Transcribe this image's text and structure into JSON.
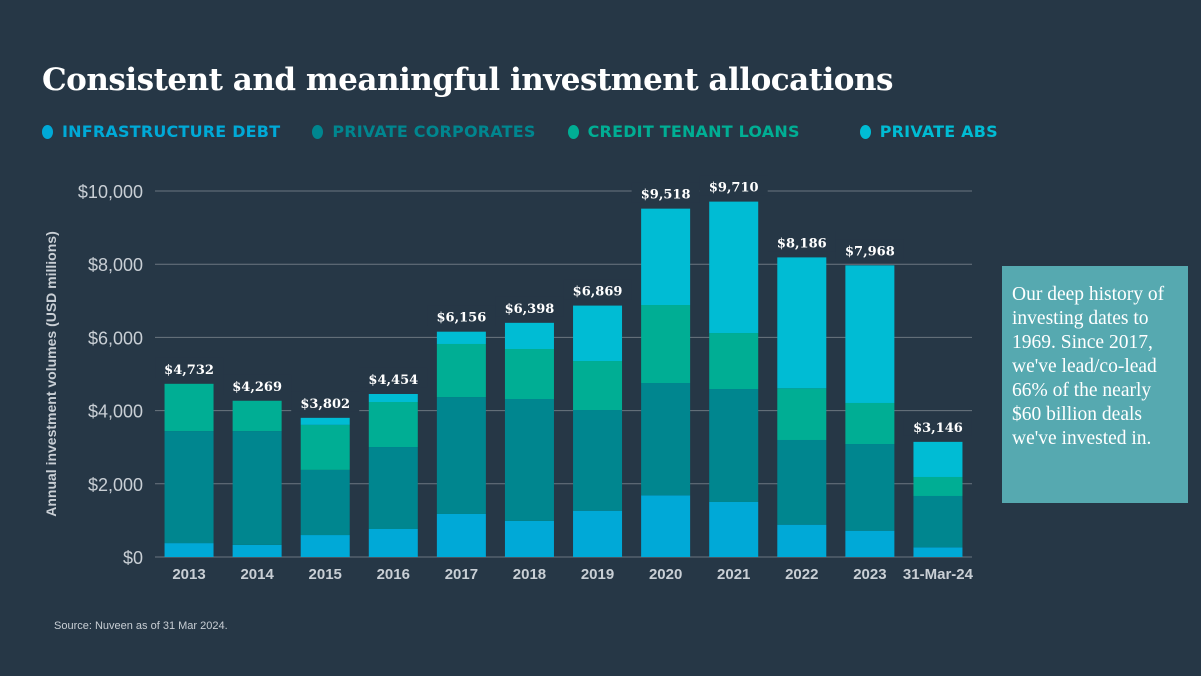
{
  "chart_data": {
    "type": "bar",
    "stacked": true,
    "title": "Consistent and meaningful investment allocations",
    "ylabel": "Annual investment volumes (USD millions)",
    "xlabel": "",
    "ylim": [
      0,
      10000
    ],
    "yticks": [
      0,
      2000,
      4000,
      6000,
      8000,
      10000
    ],
    "ytick_labels": [
      "$0",
      "$2,000",
      "$4,000",
      "$6,000",
      "$8,000",
      "$10,000"
    ],
    "grid": true,
    "legend_position": "top",
    "categories": [
      "2013",
      "2014",
      "2015",
      "2016",
      "2017",
      "2018",
      "2019",
      "2020",
      "2021",
      "2022",
      "2023",
      "31-Mar-24"
    ],
    "totals": [
      4732,
      4269,
      3802,
      4454,
      6156,
      6398,
      6869,
      9518,
      9710,
      8186,
      7968,
      3146
    ],
    "total_labels": [
      "$4,732",
      "$4,269",
      "$3,802",
      "$4,454",
      "$6,156",
      "$6,398",
      "$6,869",
      "$9,518",
      "$9,710",
      "$8,186",
      "$7,968",
      "$3,146"
    ],
    "series": [
      {
        "name": "INFRASTRUCTURE DEBT",
        "color": "#00A9D7",
        "values": [
          380,
          330,
          600,
          765,
          1175,
          985,
          1265,
          1686,
          1503,
          883,
          719,
          265
        ]
      },
      {
        "name": "PRIVATE CORPORATES",
        "color": "#00868F",
        "values": [
          3060,
          3110,
          1780,
          2240,
          3195,
          3332,
          2751,
          3068,
          3087,
          2314,
          2368,
          1402
        ]
      },
      {
        "name": "CREDIT TENANT LOANS",
        "color": "#00AE94",
        "values": [
          1292,
          829,
          1230,
          1230,
          1450,
          1366,
          1339,
          2131,
          1530,
          1412,
          1121,
          519
        ]
      },
      {
        "name": "PRIVATE ABS",
        "color": "#00BCD4",
        "values": [
          0,
          0,
          192,
          219,
          336,
          715,
          1514,
          2633,
          3590,
          3577,
          3760,
          960
        ]
      }
    ]
  },
  "note": "Our deep history of investing dates to 1969. Since 2017, we've lead/co-lead 66% of the nearly $60 billion deals we've invested in.",
  "source": "Source: Nuveen as of 31 Mar 2024.",
  "colors": {
    "background": "#263746",
    "note_box": "#56A9B0",
    "grid": "#6b7680"
  }
}
